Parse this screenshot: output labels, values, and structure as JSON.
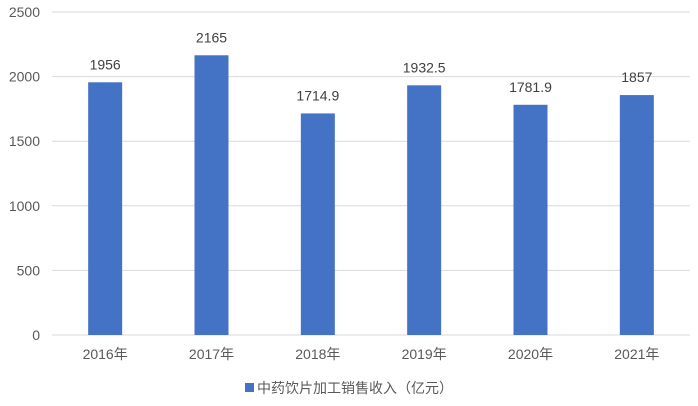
{
  "chart_data": {
    "type": "bar",
    "categories": [
      "2016年",
      "2017年",
      "2018年",
      "2019年",
      "2020年",
      "2021年"
    ],
    "series": [
      {
        "name": "中药饮片加工销售收入（亿元）",
        "values": [
          1956,
          2165,
          1714.9,
          1932.5,
          1781.9,
          1857
        ],
        "labels": [
          "1956",
          "2165",
          "1714.9",
          "1932.5",
          "1781.9",
          "1857"
        ],
        "color": "#4472C4"
      }
    ],
    "ylim": [
      0,
      2500
    ],
    "yticks": [
      0,
      500,
      1000,
      1500,
      2000,
      2500
    ],
    "grid": true,
    "legend_position": "bottom"
  }
}
